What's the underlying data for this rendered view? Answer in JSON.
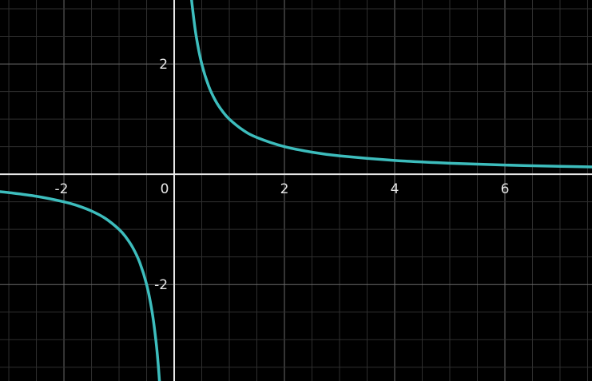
{
  "chart_data": {
    "type": "line",
    "title": "",
    "xlabel": "",
    "ylabel": "",
    "xlim": [
      -3.16,
      7.58
    ],
    "ylim": [
      -3.75,
      3.16
    ],
    "grid": true,
    "minor_grid_step": 0.5,
    "background_color": "#000000",
    "curve_color": "#3dbdbd",
    "x_ticks": [
      {
        "value": -2,
        "label": "-2"
      },
      {
        "value": 0,
        "label": "0"
      },
      {
        "value": 2,
        "label": "2"
      },
      {
        "value": 4,
        "label": "4"
      },
      {
        "value": 6,
        "label": "6"
      }
    ],
    "y_ticks": [
      {
        "value": 2,
        "label": "2"
      },
      {
        "value": -2,
        "label": "-2"
      }
    ],
    "series": [
      {
        "points": [
          [
            -3.2,
            -0.3125
          ],
          [
            -3,
            -0.333
          ],
          [
            -2.5,
            -0.4
          ],
          [
            -2,
            -0.5
          ],
          [
            -1.75,
            -0.571
          ],
          [
            -1.5,
            -0.667
          ],
          [
            -1.25,
            -0.8
          ],
          [
            -1,
            -1
          ],
          [
            -0.875,
            -1.143
          ],
          [
            -0.75,
            -1.333
          ],
          [
            -0.625,
            -1.6
          ],
          [
            -0.5,
            -2
          ],
          [
            -0.4,
            -2.5
          ],
          [
            -0.33,
            -3.03
          ],
          [
            -0.29,
            -3.45
          ],
          [
            -0.26,
            -3.85
          ]
        ]
      },
      {
        "points": [
          [
            0.3,
            3.33
          ],
          [
            0.33,
            3.03
          ],
          [
            0.4,
            2.5
          ],
          [
            0.5,
            2
          ],
          [
            0.625,
            1.6
          ],
          [
            0.75,
            1.333
          ],
          [
            0.875,
            1.143
          ],
          [
            1,
            1
          ],
          [
            1.25,
            0.8
          ],
          [
            1.5,
            0.667
          ],
          [
            2,
            0.5
          ],
          [
            2.5,
            0.4
          ],
          [
            3,
            0.333
          ],
          [
            4,
            0.25
          ],
          [
            5,
            0.2
          ],
          [
            6,
            0.167
          ],
          [
            7,
            0.143
          ],
          [
            7.8,
            0.128
          ]
        ]
      }
    ]
  }
}
